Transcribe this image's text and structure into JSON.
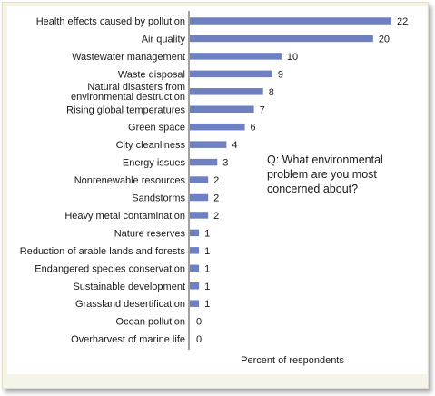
{
  "chart_data": {
    "type": "bar",
    "orientation": "horizontal",
    "categories": [
      "Health effects caused by pollution",
      "Air quality",
      "Wastewater management",
      "Waste disposal",
      "Natural disasters from environmental destruction",
      "Rising global temperatures",
      "Green space",
      "City cleanliness",
      "Energy issues",
      "Nonrenewable resources",
      "Sandstorms",
      "Heavy metal contamination",
      "Nature reserves",
      "Reduction of arable lands and forests",
      "Endangered species conservation",
      "Sustainable development",
      "Grassland desertification",
      "Ocean pollution",
      "Overharvest of marine life"
    ],
    "values": [
      22,
      20,
      10,
      9,
      8,
      7,
      6,
      4,
      3,
      2,
      2,
      2,
      1,
      1,
      1,
      1,
      1,
      0,
      0
    ],
    "xlabel": "Percent of respondents",
    "xlim": [
      0,
      22
    ],
    "annotation": "Q: What environmental problem are you most concerned about?",
    "grid": false,
    "bar_color": "#6e80c2"
  }
}
